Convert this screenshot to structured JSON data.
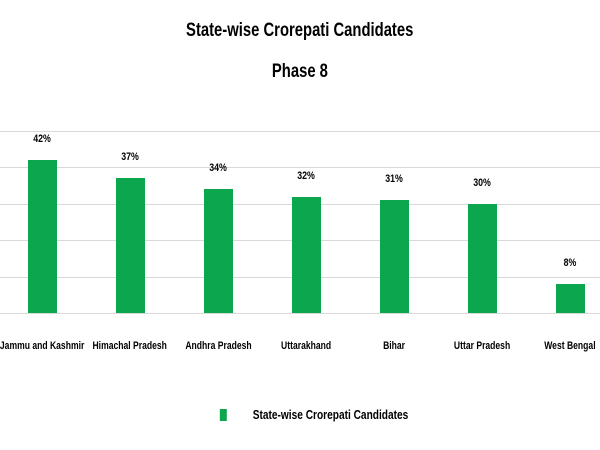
{
  "header": {
    "title": "State-wise Crorepati Candidates",
    "subtitle": "Phase 8"
  },
  "legend": {
    "label": "State-wise Crorepati Candidates",
    "marker_color": "#0ca64f"
  },
  "colors": {
    "bar": "#0ca64f",
    "gridline": "#d9d9d9",
    "text": "#000000",
    "background": "#ffffff"
  },
  "chart_data": {
    "type": "bar",
    "title": "State-wise Crorepati Candidates",
    "subtitle": "Phase 8",
    "categories": [
      "Jammu and Kashmir",
      "Himachal Pradesh",
      "Andhra Pradesh",
      "Uttarakhand",
      "Bihar",
      "Uttar Pradesh",
      "West Bengal"
    ],
    "values": [
      42,
      37,
      34,
      32,
      31,
      30,
      8
    ],
    "value_labels": [
      "42%",
      "37%",
      "34%",
      "32%",
      "31%",
      "30%",
      "8%"
    ],
    "xlabel": "",
    "ylabel": "",
    "ylim": [
      0,
      50
    ],
    "grid_step": 10,
    "grid": true,
    "y_axis_labels_visible": false,
    "legend_position": "bottom",
    "legend_entries": [
      "State-wise Crorepati Candidates"
    ]
  }
}
